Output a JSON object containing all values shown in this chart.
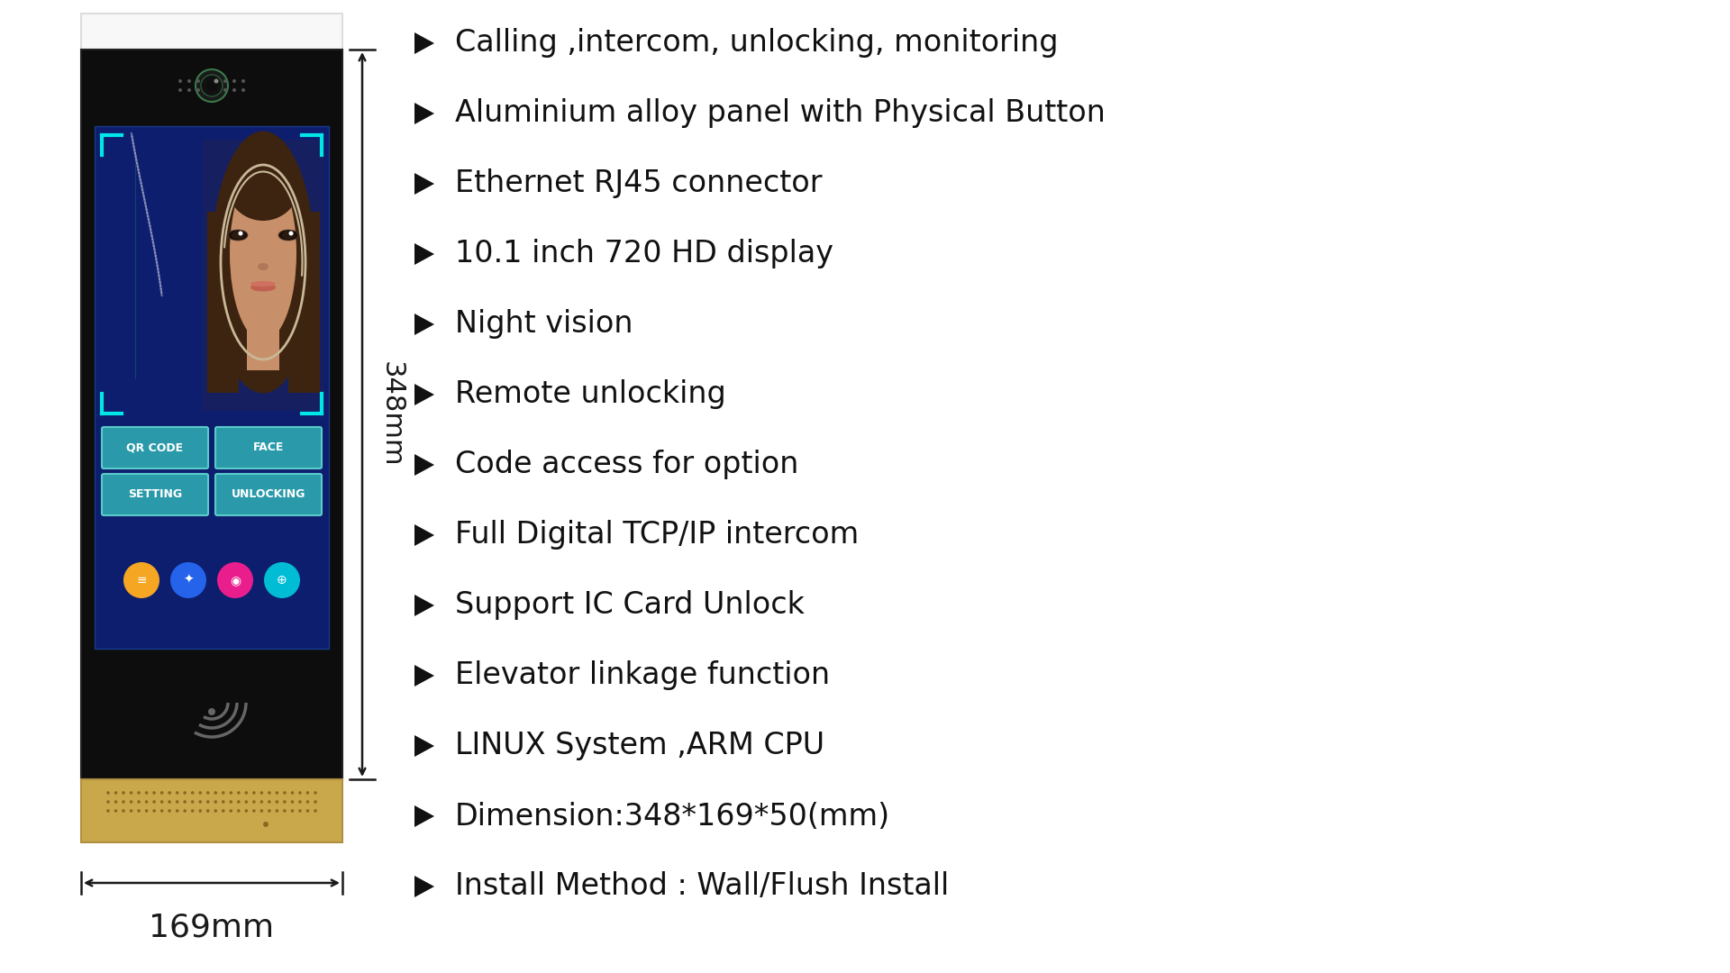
{
  "background_color": "#ffffff",
  "features": [
    "Calling ,intercom, unlocking, monitoring",
    "Aluminium alloy panel with Physical Button",
    "Ethernet RJ45 connector",
    "10.1 inch 720 HD display",
    "Night vision",
    "Remote unlocking",
    "Code access for option",
    "Full Digital TCP/IP intercom",
    "Support IC Card Unlock",
    "Elevator linkage function",
    "LINUX System ,ARM CPU",
    "Dimension:348*169*50(mm)",
    "Install Method : Wall/Flush Install"
  ],
  "feature_fontsize": 24,
  "arrow_color": "#111111",
  "text_color": "#111111",
  "dim_348": "348mm",
  "dim_169": "169mm",
  "device_bg_white": "#f8f8f8",
  "device_bg_black": "#0d0d0d",
  "device_bg_gold": "#c9a84c",
  "screen_bg": "#0d1e6e",
  "button_color": "#2a9aaa",
  "face_corner_color": "#00e5e5",
  "icon_orange": "#f5a623",
  "icon_blue": "#2563eb",
  "icon_pink": "#e91e8c",
  "icon_cyan": "#00bcd4",
  "cam_dot_color": "#555555",
  "face_bg": "#1a3a8a",
  "face_oval_color": "#c8a882"
}
